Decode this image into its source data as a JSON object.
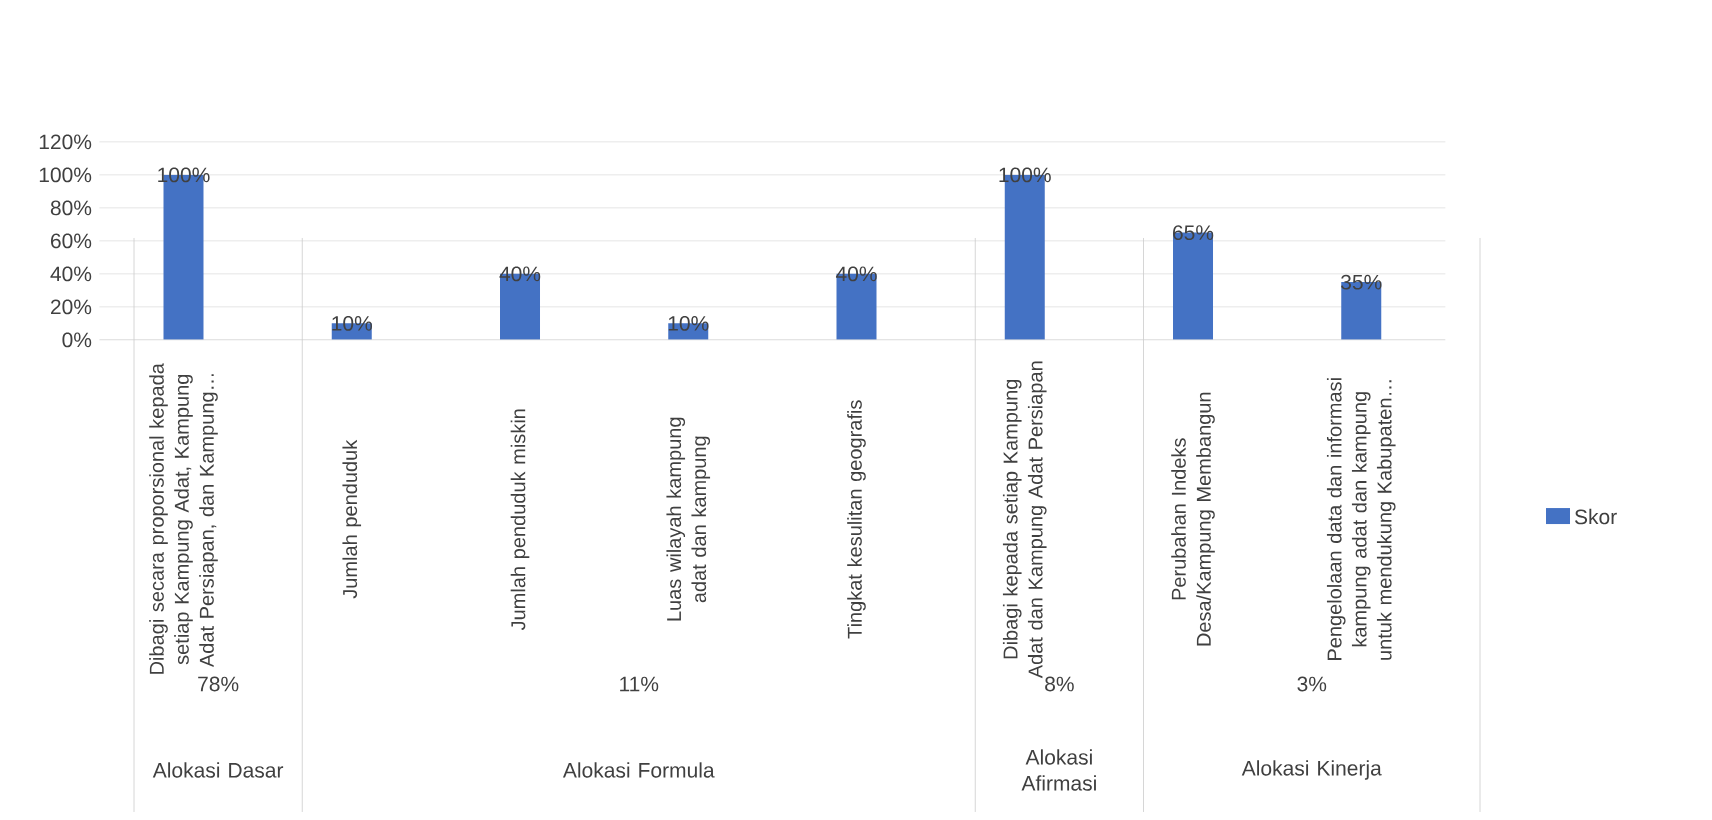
{
  "chart_data": {
    "type": "bar",
    "categories": [
      "Dibagi secara proporsional kepada setiap Kampung Adat, Kampung Adat Persiapan, dan Kampung…",
      "Jumlah penduduk",
      "Jumlah penduduk miskin",
      "Luas wilayah kampung adat dan kampung",
      "Tingkat kesulitan geografis",
      "Dibagi kepada setiap Kampung Adat dan Kampung Adat Persiapan",
      "Perubahan Indeks Desa/Kampung Membangun",
      "Pengelolaan data dan informasi kampung adat dan kampung untuk mendukung Kabupaten…"
    ],
    "series": [
      {
        "name": "Skor",
        "color": "#4472c4",
        "values": [
          100,
          10,
          40,
          10,
          40,
          100,
          65,
          35
        ],
        "value_labels": [
          "100%",
          "10%",
          "40%",
          "10%",
          "40%",
          "100%",
          "65%",
          "35%"
        ]
      }
    ],
    "ylim": [
      0,
      120
    ],
    "yticks": [
      {
        "value": 0,
        "label": "0%"
      },
      {
        "value": 20,
        "label": "20%"
      },
      {
        "value": 40,
        "label": "40%"
      },
      {
        "value": 60,
        "label": "60%"
      },
      {
        "value": 80,
        "label": "80%"
      },
      {
        "value": 100,
        "label": "100%"
      },
      {
        "value": 120,
        "label": "120%"
      }
    ],
    "grid": "y",
    "legend": "right",
    "annotations": [
      "78%",
      "11%",
      "8%",
      "3%",
      "Alokasi Dasar",
      "Alokasi Formula",
      "Alokasi Afirmasi",
      "Alokasi Kinerja"
    ]
  }
}
